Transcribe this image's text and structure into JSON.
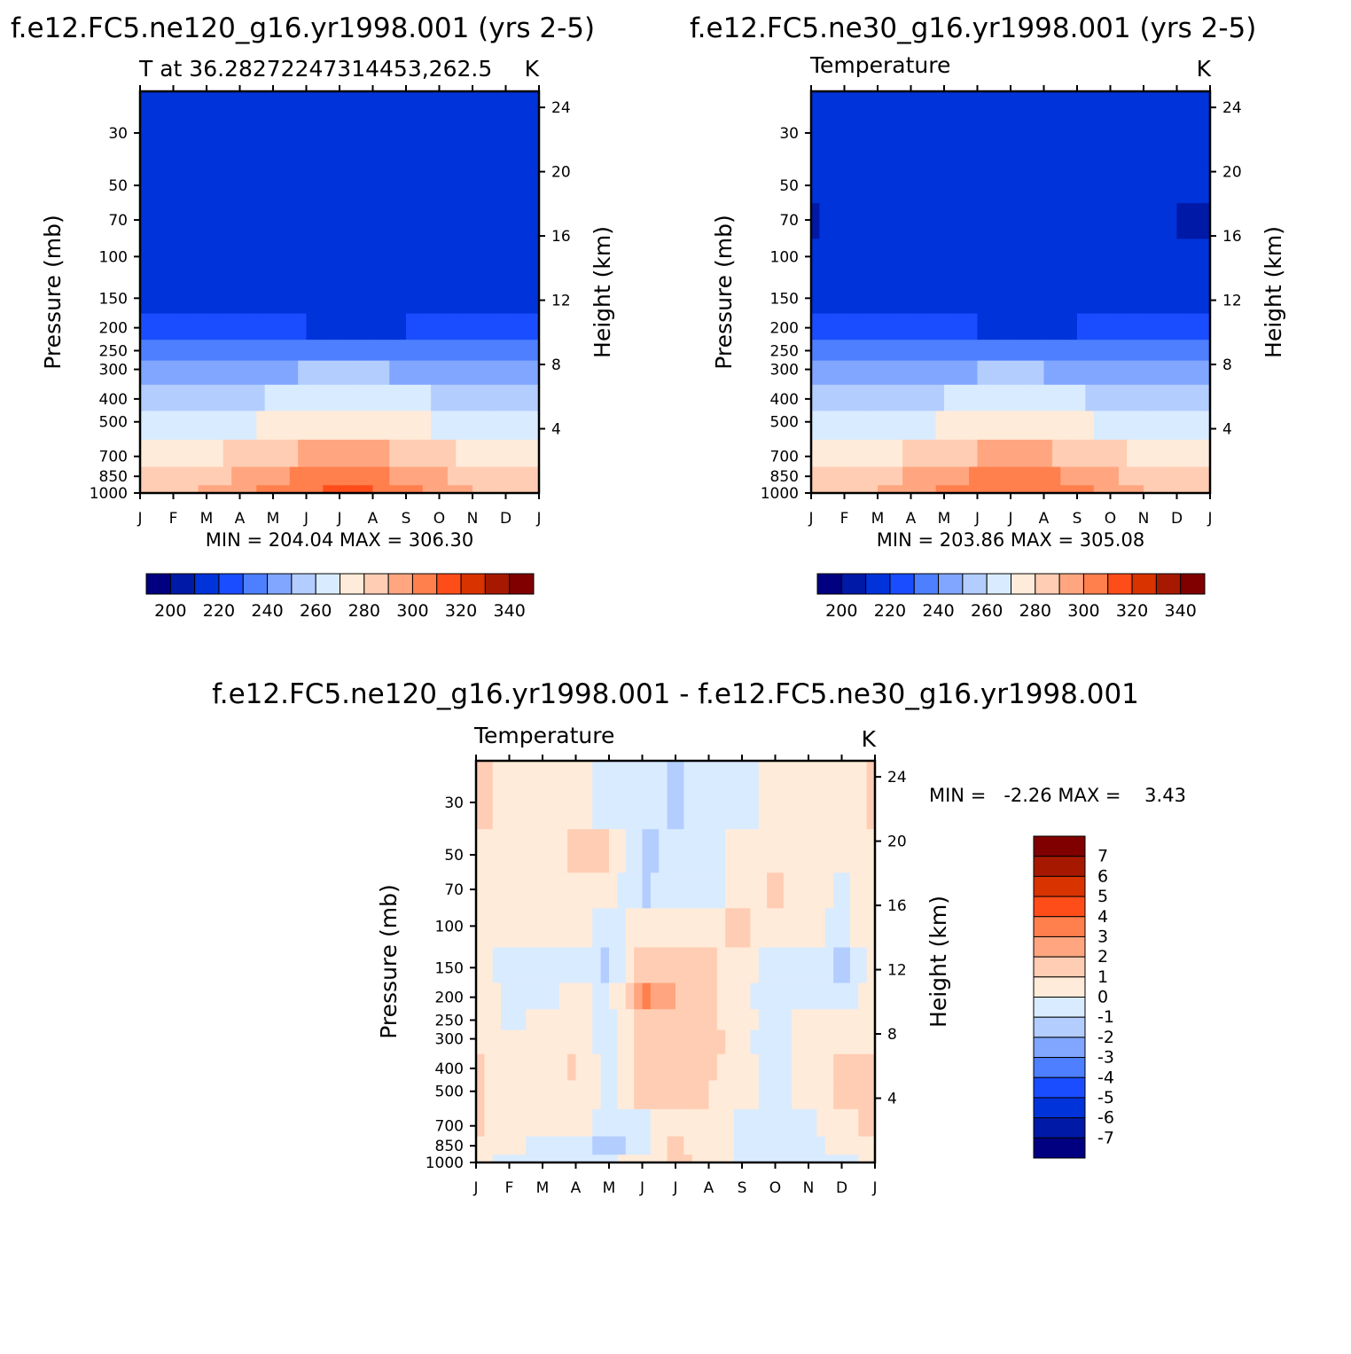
{
  "colors": {
    "abs_scale": [
      "#000080",
      "#0019a6",
      "#0033d9",
      "#1a4dff",
      "#4d7fff",
      "#80a6ff",
      "#b3cdff",
      "#d9ebff",
      "#ffebd9",
      "#ffcdb3",
      "#ffa680",
      "#ff7f4d",
      "#ff4d1a",
      "#d93300",
      "#a61900",
      "#800000"
    ],
    "diff_scale": [
      "#000080",
      "#0019a6",
      "#0033d9",
      "#1a4dff",
      "#4d7fff",
      "#80a6ff",
      "#b3cdff",
      "#d9ebff",
      "#ffebd9",
      "#ffcdb3",
      "#ffa680",
      "#ff7f4d",
      "#ff4d1a",
      "#d93300",
      "#a61900",
      "#800000"
    ]
  },
  "panels": [
    {
      "title": "f.e12.FC5.ne120_g16.yr1998.001 (yrs 2-5)",
      "left_label": "T at 36.28272247314453,262.5",
      "right_label": "K",
      "stats": "MIN = 204.04 MAX = 306.30",
      "colorbar_labels": [
        "200",
        "220",
        "240",
        "260",
        "280",
        "300",
        "320",
        "340"
      ]
    },
    {
      "title": "f.e12.FC5.ne30_g16.yr1998.001 (yrs 2-5)",
      "left_label": "Temperature",
      "right_label": "K",
      "stats": "MIN = 203.86 MAX = 305.08",
      "colorbar_labels": [
        "200",
        "220",
        "240",
        "260",
        "280",
        "300",
        "320",
        "340"
      ]
    },
    {
      "title": "f.e12.FC5.ne120_g16.yr1998.001 - f.e12.FC5.ne30_g16.yr1998.001",
      "left_label": "Temperature",
      "right_label": "K",
      "stats": "MIN =   -2.26 MAX =    3.43",
      "colorbar_labels": [
        "7",
        "6",
        "5",
        "4",
        "3",
        "2",
        "1",
        "0",
        "-1",
        "-2",
        "-3",
        "-4",
        "-5",
        "-6",
        "-7"
      ]
    }
  ],
  "axes": {
    "ylabel": "Pressure (mb)",
    "y2label": "Height (km)",
    "pressure_ticks": [
      "30",
      "50",
      "70",
      "100",
      "150",
      "200",
      "250",
      "300",
      "400",
      "500",
      "700",
      "850",
      "1000"
    ],
    "height_ticks": [
      "24",
      "20",
      "16",
      "12",
      "8",
      "4"
    ],
    "month_ticks": [
      "J",
      "F",
      "M",
      "A",
      "M",
      "J",
      "J",
      "A",
      "S",
      "O",
      "N",
      "D",
      "J"
    ]
  },
  "chart_data": [
    {
      "type": "heatmap",
      "title": "f.e12.FC5.ne120_g16.yr1998.001 (yrs 2-5)",
      "ylabel": "Pressure (mb)",
      "x": [
        "J",
        "F",
        "M",
        "A",
        "M",
        "J",
        "J",
        "A",
        "S",
        "O",
        "N",
        "D",
        "J"
      ],
      "y_pressure": [
        1000,
        850,
        700,
        500,
        400,
        300,
        250,
        200,
        150,
        100,
        70,
        50,
        30
      ],
      "ylim_pressure": [
        1000,
        20
      ],
      "ylim_height_km": [
        0,
        25
      ],
      "levels": [
        195,
        205,
        215,
        225,
        235,
        245,
        255,
        265,
        275,
        285,
        295,
        305,
        315,
        325,
        335
      ],
      "values": [
        [
          280,
          281,
          286,
          292,
          298,
          304,
          306,
          305,
          299,
          292,
          285,
          281,
          280
        ],
        [
          276,
          277,
          281,
          287,
          292,
          297,
          299,
          298,
          293,
          287,
          281,
          277,
          276
        ],
        [
          268,
          269,
          272,
          277,
          282,
          286,
          288,
          287,
          283,
          278,
          273,
          269,
          268
        ],
        [
          257,
          258,
          260,
          263,
          267,
          271,
          272,
          271,
          268,
          264,
          260,
          258,
          257
        ],
        [
          248,
          248,
          250,
          253,
          256,
          259,
          260,
          259,
          257,
          254,
          250,
          249,
          248
        ],
        [
          236,
          236,
          238,
          240,
          243,
          246,
          247,
          246,
          244,
          241,
          239,
          237,
          236
        ],
        [
          227,
          227,
          228,
          230,
          232,
          234,
          235,
          234,
          233,
          231,
          229,
          228,
          227
        ],
        [
          219,
          219,
          219,
          218,
          216,
          215,
          214,
          214,
          215,
          216,
          217,
          218,
          219
        ],
        [
          211,
          212,
          212,
          208,
          206,
          208,
          208,
          208,
          208,
          208,
          208,
          210,
          211
        ],
        [
          206,
          211,
          211,
          207,
          205,
          205,
          205,
          205,
          205,
          205,
          205,
          206,
          206
        ],
        [
          205,
          210,
          210,
          207,
          205,
          205,
          205,
          205,
          205,
          205,
          205,
          205,
          205
        ],
        [
          206,
          210,
          210,
          208,
          206,
          205,
          205,
          205,
          205,
          205,
          205,
          206,
          206
        ],
        [
          210,
          211,
          212,
          211,
          210,
          209,
          209,
          209,
          209,
          208,
          207,
          206,
          210
        ]
      ],
      "min": 204.04,
      "max": 306.3,
      "units": "K"
    },
    {
      "type": "heatmap",
      "title": "f.e12.FC5.ne30_g16.yr1998.001 (yrs 2-5)",
      "ylabel": "Pressure (mb)",
      "x": [
        "J",
        "F",
        "M",
        "A",
        "M",
        "J",
        "J",
        "A",
        "S",
        "O",
        "N",
        "D",
        "J"
      ],
      "y_pressure": [
        1000,
        850,
        700,
        500,
        400,
        300,
        250,
        200,
        150,
        100,
        70,
        50,
        30
      ],
      "ylim_pressure": [
        1000,
        20
      ],
      "ylim_height_km": [
        0,
        25
      ],
      "levels": [
        195,
        205,
        215,
        225,
        235,
        245,
        255,
        265,
        275,
        285,
        295,
        305,
        315,
        325,
        335
      ],
      "values": [
        [
          280,
          281,
          285,
          291,
          297,
          302,
          305,
          304,
          298,
          291,
          285,
          281,
          280
        ],
        [
          276,
          277,
          280,
          286,
          291,
          296,
          298,
          297,
          292,
          286,
          281,
          277,
          276
        ],
        [
          268,
          269,
          272,
          276,
          281,
          285,
          287,
          286,
          282,
          277,
          273,
          269,
          268
        ],
        [
          257,
          258,
          260,
          263,
          266,
          270,
          271,
          270,
          267,
          263,
          260,
          258,
          257
        ],
        [
          248,
          248,
          250,
          252,
          255,
          258,
          259,
          258,
          256,
          253,
          250,
          249,
          248
        ],
        [
          236,
          236,
          238,
          240,
          242,
          245,
          246,
          245,
          243,
          241,
          239,
          237,
          236
        ],
        [
          227,
          227,
          228,
          229,
          231,
          233,
          234,
          233,
          232,
          230,
          229,
          228,
          227
        ],
        [
          219,
          219,
          219,
          218,
          216,
          215,
          214,
          214,
          215,
          216,
          217,
          218,
          219
        ],
        [
          210,
          211,
          211,
          208,
          205,
          205,
          206,
          206,
          207,
          207,
          207,
          209,
          210
        ],
        [
          205,
          210,
          210,
          207,
          205,
          205,
          205,
          205,
          205,
          205,
          205,
          205,
          205
        ],
        [
          204,
          210,
          210,
          207,
          205,
          205,
          205,
          205,
          205,
          205,
          205,
          205,
          204
        ],
        [
          205,
          210,
          210,
          208,
          206,
          205,
          205,
          205,
          205,
          205,
          205,
          205,
          205
        ],
        [
          210,
          210,
          210,
          211,
          210,
          209,
          209,
          209,
          209,
          209,
          208,
          206,
          210
        ]
      ],
      "min": 203.86,
      "max": 305.08,
      "units": "K"
    },
    {
      "type": "heatmap",
      "title": "f.e12.FC5.ne120_g16.yr1998.001 - f.e12.FC5.ne30_g16.yr1998.001",
      "ylabel": "Pressure (mb)",
      "x": [
        "J",
        "F",
        "M",
        "A",
        "M",
        "J",
        "J",
        "A",
        "S",
        "O",
        "N",
        "D",
        "J"
      ],
      "y_pressure": [
        1000,
        850,
        700,
        500,
        400,
        300,
        250,
        200,
        150,
        100,
        70,
        50,
        30
      ],
      "ylim_pressure": [
        1000,
        20
      ],
      "ylim_height_km": [
        0,
        25
      ],
      "levels": [
        -7,
        -6,
        -5,
        -4,
        -3,
        -2,
        -1,
        0,
        1,
        2,
        3,
        4,
        5,
        6,
        7
      ],
      "values": [
        [
          0.3,
          -0.4,
          -0.5,
          -0.2,
          -0.3,
          0.5,
          1.2,
          0.8,
          -0.4,
          -0.5,
          -0.3,
          -0.4,
          0.3
        ],
        [
          0.5,
          0.4,
          -0.3,
          -0.3,
          -1.5,
          -0.3,
          1.2,
          0.6,
          -0.3,
          -0.6,
          -0.2,
          0.2,
          0.5
        ],
        [
          1.2,
          0.6,
          0.4,
          0.3,
          -0.4,
          -0.3,
          0.7,
          0.6,
          -0.3,
          -0.5,
          -0.2,
          0.8,
          1.2
        ],
        [
          1.2,
          0.5,
          0.4,
          1.0,
          -0.3,
          1.2,
          1.4,
          1.0,
          0.3,
          -0.4,
          0.3,
          1.2,
          1.2
        ],
        [
          1.2,
          0.4,
          0.4,
          1.1,
          -0.4,
          1.2,
          1.5,
          1.2,
          0.3,
          -0.5,
          0.4,
          1.2,
          1.2
        ],
        [
          0.8,
          0.4,
          0.3,
          0.6,
          -0.4,
          1.3,
          1.6,
          1.4,
          0.4,
          -0.8,
          0.5,
          1.0,
          0.8
        ],
        [
          0.8,
          -0.3,
          0.3,
          0.5,
          -0.4,
          1.5,
          1.7,
          1.3,
          0.4,
          -0.6,
          0.5,
          0.8,
          0.8
        ],
        [
          0.6,
          -0.3,
          -0.3,
          0.3,
          -0.4,
          3.3,
          2.0,
          1.2,
          0.3,
          -0.8,
          -0.3,
          -0.4,
          0.6
        ],
        [
          0.4,
          -0.3,
          -0.3,
          -0.3,
          -1.2,
          1.6,
          1.6,
          1.1,
          0.3,
          -0.3,
          -0.3,
          -1.3,
          0.4
        ],
        [
          0.6,
          0.4,
          0.4,
          0.3,
          -0.4,
          0.5,
          0.8,
          0.6,
          1.3,
          0.3,
          0.4,
          -0.3,
          0.6
        ],
        [
          0.8,
          0.6,
          0.5,
          0.5,
          0.4,
          -1.2,
          -0.4,
          -0.3,
          0.4,
          1.1,
          0.5,
          -0.3,
          0.8
        ],
        [
          1.0,
          0.6,
          0.4,
          1.2,
          1.1,
          -1.3,
          -0.7,
          -0.5,
          0.3,
          0.4,
          0.4,
          0.4,
          1.0
        ],
        [
          1.3,
          0.6,
          0.4,
          0.3,
          -0.3,
          -0.6,
          -1.2,
          -0.6,
          -0.3,
          0.3,
          0.5,
          0.4,
          1.3
        ]
      ],
      "min": -2.26,
      "max": 3.43,
      "units": "K"
    }
  ]
}
